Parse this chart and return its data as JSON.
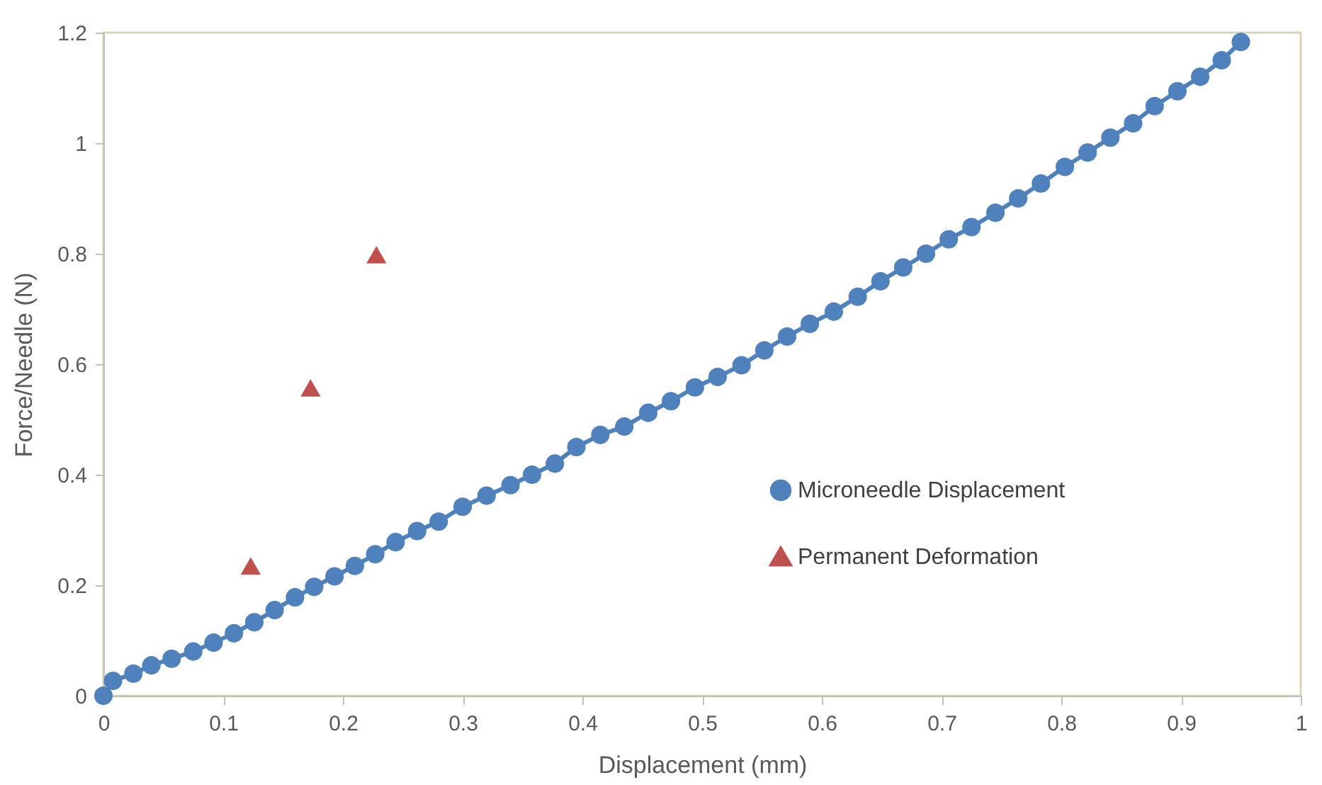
{
  "chart_data": {
    "type": "line",
    "xlabel": "Displacement (mm)",
    "ylabel": "Force/Needle (N)",
    "xlim": [
      0,
      1
    ],
    "xticks": [
      0,
      0.1,
      0.2,
      0.3,
      0.4,
      0.5,
      0.6,
      0.7,
      0.8,
      0.9,
      1
    ],
    "ylim": [
      0,
      1.2
    ],
    "yticks": [
      0,
      0.2,
      0.4,
      0.6,
      0.8,
      1,
      1.2
    ],
    "grid": false,
    "legend": "right",
    "series": [
      {
        "name": "Microneedle Displacement",
        "color": "#4f81bd",
        "marker": "circle",
        "line_style": "solid",
        "x": [
          0,
          0.008,
          0.025,
          0.04,
          0.057,
          0.075,
          0.092,
          0.109,
          0.126,
          0.143,
          0.16,
          0.176,
          0.193,
          0.21,
          0.227,
          0.244,
          0.262,
          0.28,
          0.3,
          0.32,
          0.34,
          0.358,
          0.377,
          0.395,
          0.415,
          0.435,
          0.455,
          0.474,
          0.494,
          0.513,
          0.533,
          0.552,
          0.571,
          0.59,
          0.61,
          0.63,
          0.649,
          0.668,
          0.687,
          0.706,
          0.725,
          0.745,
          0.764,
          0.783,
          0.803,
          0.822,
          0.841,
          0.86,
          0.878,
          0.897,
          0.916,
          0.934,
          0.95
        ],
        "values": [
          0,
          0.027,
          0.04,
          0.055,
          0.067,
          0.08,
          0.096,
          0.113,
          0.133,
          0.155,
          0.178,
          0.197,
          0.216,
          0.235,
          0.256,
          0.278,
          0.298,
          0.315,
          0.342,
          0.362,
          0.381,
          0.4,
          0.42,
          0.45,
          0.472,
          0.487,
          0.512,
          0.533,
          0.558,
          0.577,
          0.598,
          0.625,
          0.65,
          0.673,
          0.695,
          0.722,
          0.75,
          0.775,
          0.8,
          0.826,
          0.848,
          0.874,
          0.9,
          0.927,
          0.957,
          0.983,
          1.01,
          1.036,
          1.067,
          1.094,
          1.12,
          1.15,
          1.183
        ]
      },
      {
        "name": "Permanent Deformation",
        "type": "scatter",
        "color": "#c0504d",
        "marker": "triangle",
        "x": [
          0.123,
          0.173,
          0.228
        ],
        "values": [
          0.235,
          0.557,
          0.798
        ]
      }
    ]
  }
}
